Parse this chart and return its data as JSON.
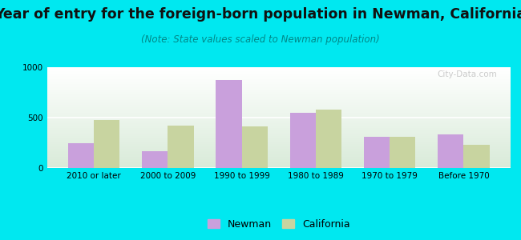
{
  "title": "Year of entry for the foreign-born population in Newman, California",
  "subtitle": "(Note: State values scaled to Newman population)",
  "categories": [
    "2010 or later",
    "2000 to 2009",
    "1990 to 1999",
    "1980 to 1989",
    "1970 to 1979",
    "Before 1970"
  ],
  "newman_values": [
    250,
    165,
    870,
    545,
    310,
    335
  ],
  "california_values": [
    475,
    420,
    415,
    580,
    310,
    230
  ],
  "newman_color": "#c9a0dc",
  "california_color": "#c8d4a0",
  "background_outer": "#00e8f0",
  "ylim": [
    0,
    1000
  ],
  "yticks": [
    0,
    500,
    1000
  ],
  "bar_width": 0.35,
  "title_fontsize": 12.5,
  "subtitle_fontsize": 8.5,
  "tick_fontsize": 7.5,
  "legend_fontsize": 9,
  "watermark": "City-Data.com"
}
